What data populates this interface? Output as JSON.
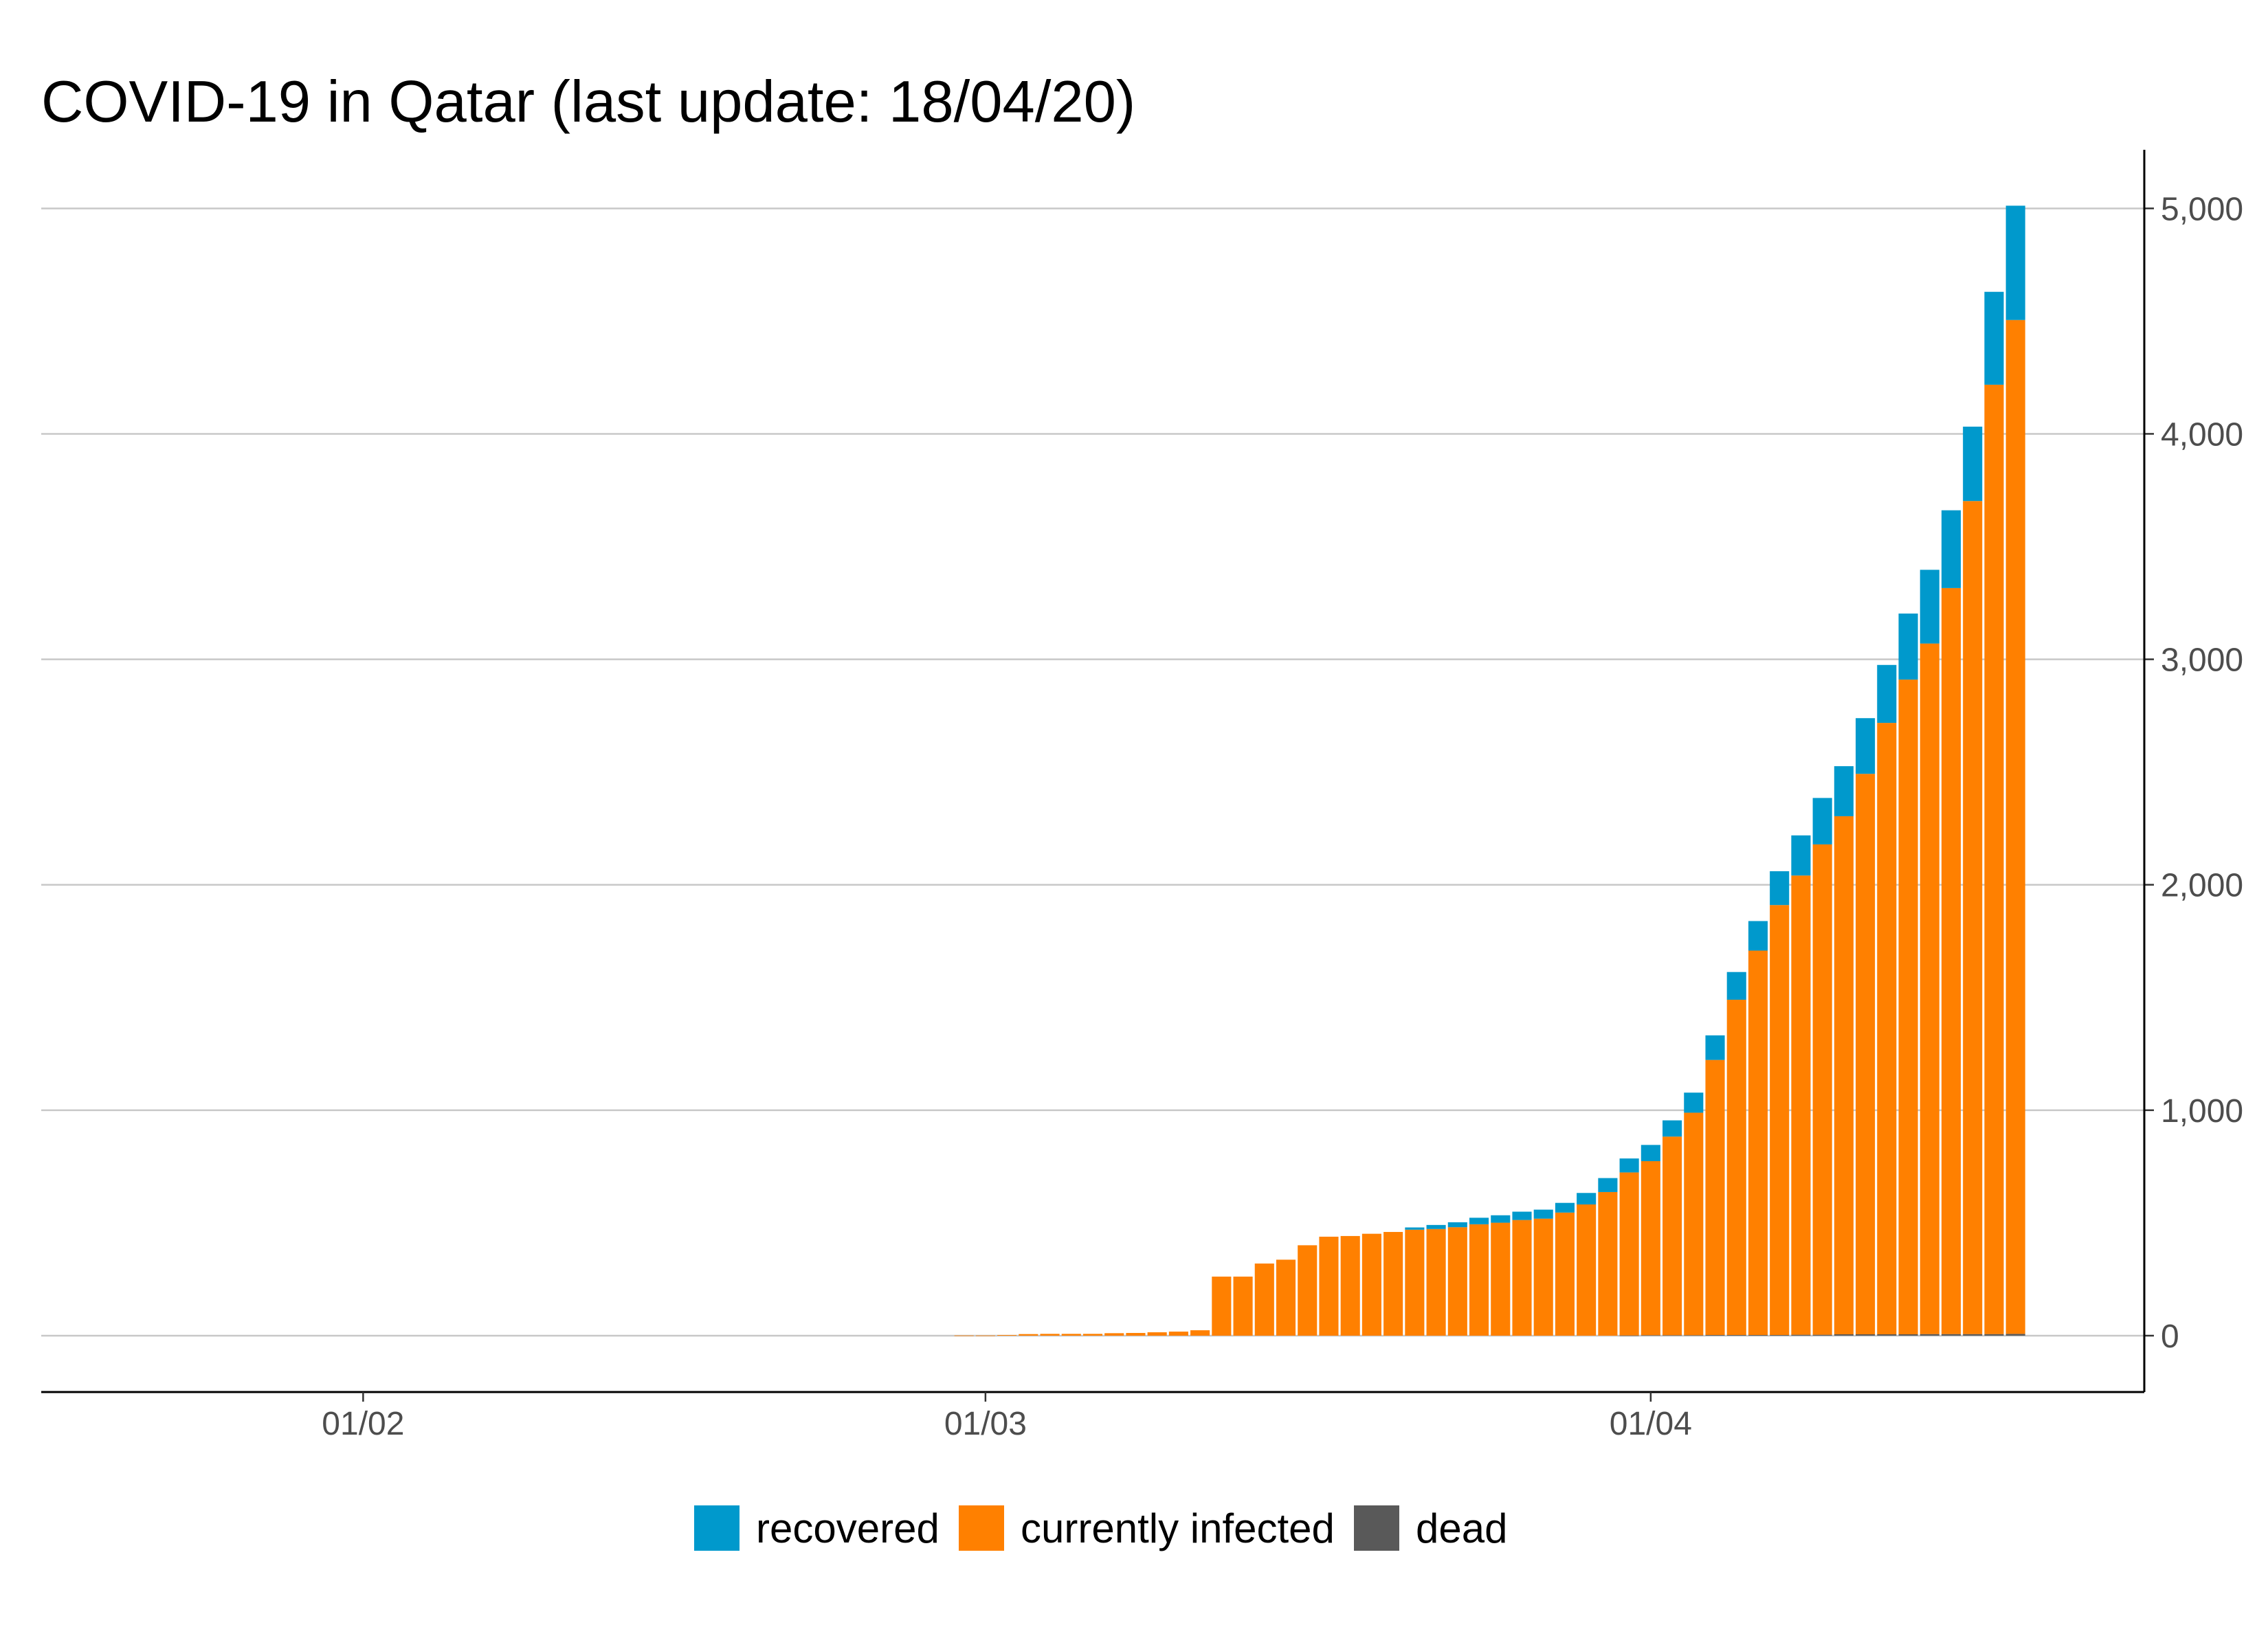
{
  "chart_data": {
    "type": "bar",
    "stacked": true,
    "title": "COVID-19 in Qatar (last update: 18/04/20)",
    "xlabel": "",
    "ylabel": "",
    "ylim": [
      -250,
      5260
    ],
    "y_ticks": [
      0,
      1000,
      2000,
      3000,
      4000,
      5000
    ],
    "y_tick_labels": [
      "0",
      "1,000",
      "2,000",
      "3,000",
      "4,000",
      "5,000"
    ],
    "y_axis_position": "right",
    "x_range": [
      "2020-01-17",
      "2020-04-24"
    ],
    "x_ticks": [
      "2020-02-01",
      "2020-03-01",
      "2020-04-01"
    ],
    "x_tick_labels": [
      "01/02",
      "01/03",
      "01/04"
    ],
    "grid": true,
    "legend_position": "bottom",
    "dates": [
      "2020-02-29",
      "2020-03-01",
      "2020-03-02",
      "2020-03-03",
      "2020-03-04",
      "2020-03-05",
      "2020-03-06",
      "2020-03-07",
      "2020-03-08",
      "2020-03-09",
      "2020-03-10",
      "2020-03-11",
      "2020-03-12",
      "2020-03-13",
      "2020-03-14",
      "2020-03-15",
      "2020-03-16",
      "2020-03-17",
      "2020-03-18",
      "2020-03-19",
      "2020-03-20",
      "2020-03-21",
      "2020-03-22",
      "2020-03-23",
      "2020-03-24",
      "2020-03-25",
      "2020-03-26",
      "2020-03-27",
      "2020-03-28",
      "2020-03-29",
      "2020-03-30",
      "2020-03-31",
      "2020-04-01",
      "2020-04-02",
      "2020-04-03",
      "2020-04-04",
      "2020-04-05",
      "2020-04-06",
      "2020-04-07",
      "2020-04-08",
      "2020-04-09",
      "2020-04-10",
      "2020-04-11",
      "2020-04-12",
      "2020-04-13",
      "2020-04-14",
      "2020-04-15",
      "2020-04-16",
      "2020-04-17",
      "2020-04-18"
    ],
    "series": [
      {
        "name": "dead",
        "color": "#595959",
        "values": [
          0,
          0,
          0,
          0,
          0,
          0,
          0,
          0,
          0,
          0,
          0,
          0,
          0,
          0,
          0,
          0,
          0,
          0,
          0,
          0,
          0,
          0,
          0,
          0,
          0,
          0,
          0,
          0,
          0,
          0,
          0,
          1,
          2,
          2,
          2,
          3,
          3,
          3,
          3,
          4,
          4,
          6,
          6,
          6,
          6,
          7,
          7,
          7,
          7,
          8
        ]
      },
      {
        "name": "currently infected",
        "color": "#ff8000",
        "values": [
          1,
          1,
          3,
          7,
          8,
          8,
          8,
          11,
          12,
          15,
          18,
          24,
          262,
          262,
          320,
          337,
          401,
          439,
          442,
          452,
          460,
          470,
          473,
          481,
          494,
          501,
          513,
          519,
          546,
          582,
          637,
          723,
          772,
          881,
          987,
          1220,
          1487,
          1705,
          1907,
          2037,
          2175,
          2298,
          2486,
          2712,
          2904,
          3063,
          3309,
          3695,
          4211,
          4497
        ]
      },
      {
        "name": "recovered",
        "color": "#0099cc",
        "values": [
          0,
          0,
          0,
          0,
          0,
          0,
          0,
          0,
          0,
          0,
          0,
          0,
          0,
          0,
          0,
          0,
          0,
          0,
          0,
          0,
          0,
          10,
          18,
          22,
          29,
          33,
          37,
          40,
          43,
          51,
          62,
          62,
          72,
          72,
          89,
          109,
          123,
          131,
          150,
          178,
          206,
          222,
          247,
          257,
          293,
          327,
          345,
          330,
          412,
          507
        ]
      }
    ]
  },
  "legend": {
    "recovered": "recovered",
    "currently_infected": "currently infected",
    "dead": "dead"
  }
}
